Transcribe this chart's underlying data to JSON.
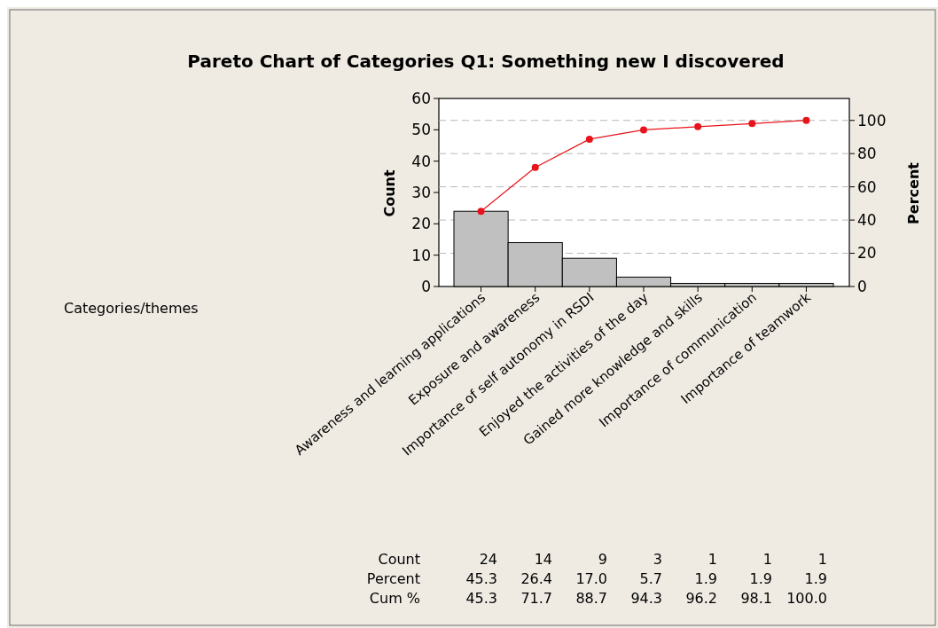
{
  "chart_data": {
    "type": "bar",
    "title": "Pareto Chart of Categories Q1: Something new I discovered",
    "ylabel": "Count",
    "y2label": "Percent",
    "annotations": [
      "Categories/themes",
      "Count",
      "Percent",
      "Cum %",
      "45.3",
      "26.4",
      "17.0",
      "5.7",
      "1.9",
      "1.9",
      "1.9"
    ],
    "categories": [
      "Awareness and learning applications",
      "Exposure and awareness",
      "Importance of self autonomy in RSDI",
      "Enjoyed the activities of the day",
      "Gained more knowledge and skills",
      "Importance of communication",
      "Importance of teamwork"
    ],
    "series": [
      {
        "color": "#c0c0c0",
        "values": [
          24,
          14,
          9,
          3,
          1,
          1,
          1
        ]
      },
      {
        "type": "line",
        "axis": "y2",
        "color": "#e8141c",
        "values": [
          45.3,
          71.7,
          88.7,
          94.3,
          96.2,
          98.1,
          100.0
        ],
        "value_labels": [
          "45.3",
          "71.7",
          "88.7",
          "94.3",
          "96.2",
          "98.1",
          "100.0"
        ]
      }
    ],
    "ylim": [
      0,
      60
    ],
    "yticks": [
      0,
      10,
      20,
      30,
      40,
      50,
      60
    ],
    "y2lim": [
      0,
      113.2
    ],
    "y2ticks": [
      0,
      20,
      40,
      60,
      80,
      100
    ],
    "grid": true,
    "marker": "circle",
    "data_labels": true
  }
}
